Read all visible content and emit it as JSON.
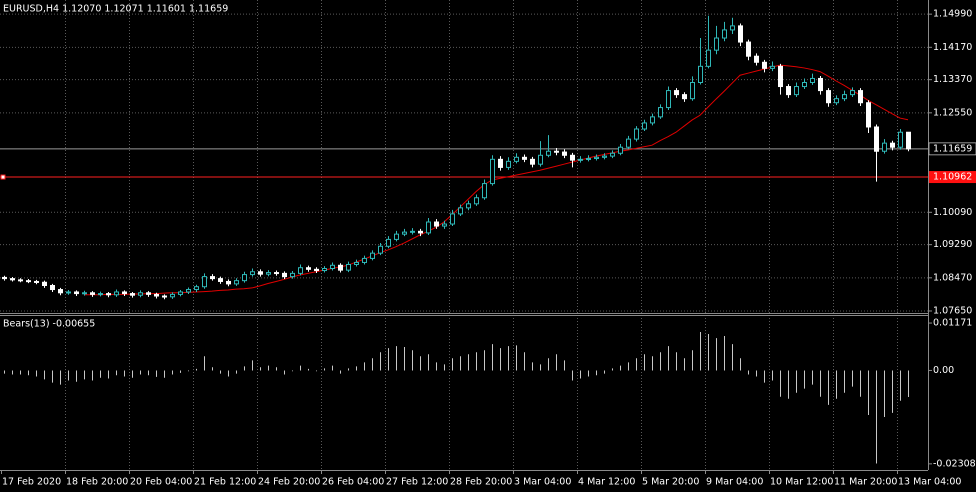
{
  "chart_data": [
    {
      "type": "candlestick",
      "title": "EURUSD,H4  1.12070 1.12071 1.11601 1.11659",
      "up_color": "#2fb8b8",
      "down_color": "#ffffff",
      "ma_color": "#e00000",
      "grid": true,
      "ylim": [
        1.076,
        1.1534
      ],
      "yticks": [
        {
          "value": 1.1499,
          "label": "1.14990"
        },
        {
          "value": 1.1417,
          "label": "1.14170"
        },
        {
          "value": 1.1337,
          "label": "1.13370"
        },
        {
          "value": 1.1255,
          "label": "1.12550"
        },
        {
          "value": 1.1009,
          "label": "1.10090"
        },
        {
          "value": 1.0929,
          "label": "1.09290"
        },
        {
          "value": 1.0847,
          "label": "1.08470"
        },
        {
          "value": 1.0765,
          "label": "1.07650"
        }
      ],
      "current_price": 1.11659,
      "level": 1.10962,
      "x_labels": [
        "17 Feb 2020",
        "18 Feb 20:00",
        "20 Feb 04:00",
        "21 Feb 12:00",
        "24 Feb 20:00",
        "26 Feb 04:00",
        "27 Feb 12:00",
        "28 Feb 20:00",
        "3 Mar 04:00",
        "4 Mar 12:00",
        "5 Mar 20:00",
        "9 Mar 04:00",
        "10 Mar 12:00",
        "11 Mar 20:00",
        "13 Mar 04:00"
      ],
      "ohlc": [
        [
          1.0848,
          1.0852,
          1.084,
          1.0845
        ],
        [
          1.0845,
          1.0849,
          1.0838,
          1.0842
        ],
        [
          1.0842,
          1.0846,
          1.0836,
          1.084
        ],
        [
          1.084,
          1.0844,
          1.0834,
          1.0838
        ],
        [
          1.0838,
          1.0842,
          1.0831,
          1.0836
        ],
        [
          1.0836,
          1.084,
          1.0822,
          1.0828
        ],
        [
          1.0828,
          1.0832,
          1.0812,
          1.0818
        ],
        [
          1.0818,
          1.0822,
          1.0804,
          1.081
        ],
        [
          1.081,
          1.0817,
          1.0805,
          1.0812
        ],
        [
          1.0812,
          1.0816,
          1.0802,
          1.0808
        ],
        [
          1.0808,
          1.0815,
          1.0803,
          1.081
        ],
        [
          1.081,
          1.0814,
          1.08,
          1.0806
        ],
        [
          1.0806,
          1.0813,
          1.0801,
          1.0808
        ],
        [
          1.0808,
          1.0812,
          1.0799,
          1.0805
        ],
        [
          1.0805,
          1.0818,
          1.08,
          1.0812
        ],
        [
          1.0812,
          1.0816,
          1.0802,
          1.0808
        ],
        [
          1.0808,
          1.0812,
          1.0798,
          1.0804
        ],
        [
          1.0804,
          1.0816,
          1.0799,
          1.081
        ],
        [
          1.081,
          1.0814,
          1.08,
          1.0806
        ],
        [
          1.0806,
          1.081,
          1.0796,
          1.0802
        ],
        [
          1.0802,
          1.0806,
          1.0794,
          1.08
        ],
        [
          1.08,
          1.0811,
          1.0795,
          1.0806
        ],
        [
          1.0806,
          1.0817,
          1.0801,
          1.0812
        ],
        [
          1.0812,
          1.0823,
          1.0807,
          1.0818
        ],
        [
          1.0818,
          1.083,
          1.0812,
          1.0825
        ],
        [
          1.0825,
          1.0858,
          1.082,
          1.085
        ],
        [
          1.085,
          1.0856,
          1.084,
          1.0845
        ],
        [
          1.0845,
          1.085,
          1.0832,
          1.0838
        ],
        [
          1.0838,
          1.0843,
          1.0826,
          1.0832
        ],
        [
          1.0832,
          1.0846,
          1.0827,
          1.084
        ],
        [
          1.084,
          1.0862,
          1.0835,
          1.0855
        ],
        [
          1.0855,
          1.087,
          1.085,
          1.0862
        ],
        [
          1.0862,
          1.0868,
          1.085,
          1.0856
        ],
        [
          1.0856,
          1.0866,
          1.0851,
          1.086
        ],
        [
          1.086,
          1.0865,
          1.0852,
          1.0858
        ],
        [
          1.0858,
          1.0863,
          1.0844,
          1.085
        ],
        [
          1.085,
          1.0864,
          1.0845,
          1.0858
        ],
        [
          1.0858,
          1.088,
          1.0853,
          1.0872
        ],
        [
          1.0872,
          1.0877,
          1.0862,
          1.0868
        ],
        [
          1.0868,
          1.0873,
          1.0859,
          1.0865
        ],
        [
          1.0865,
          1.0876,
          1.086,
          1.087
        ],
        [
          1.087,
          1.0885,
          1.0865,
          1.0878
        ],
        [
          1.0878,
          1.0883,
          1.086,
          1.0866
        ],
        [
          1.0866,
          1.0887,
          1.0861,
          1.088
        ],
        [
          1.088,
          1.0892,
          1.0875,
          1.0885
        ],
        [
          1.0885,
          1.0902,
          1.088,
          1.0895
        ],
        [
          1.0895,
          1.0915,
          1.089,
          1.0908
        ],
        [
          1.0908,
          1.0933,
          1.0903,
          1.0925
        ],
        [
          1.0925,
          1.095,
          1.092,
          1.0942
        ],
        [
          1.0942,
          1.0963,
          1.0937,
          1.0955
        ],
        [
          1.0955,
          1.0968,
          1.095,
          1.096
        ],
        [
          1.096,
          1.097,
          1.0954,
          1.0962
        ],
        [
          1.0962,
          1.0968,
          1.095,
          1.0958
        ],
        [
          1.0958,
          1.0995,
          1.0953,
          1.0985
        ],
        [
          1.0985,
          1.0992,
          1.0968,
          1.0975
        ],
        [
          1.0975,
          1.0988,
          1.0968,
          1.098
        ],
        [
          1.098,
          1.1015,
          1.0975,
          1.1005
        ],
        [
          1.1005,
          1.1028,
          1.1,
          1.102
        ],
        [
          1.102,
          1.1038,
          1.1014,
          1.103
        ],
        [
          1.103,
          1.1053,
          1.1025,
          1.1045
        ],
        [
          1.1045,
          1.109,
          1.104,
          1.108
        ],
        [
          1.108,
          1.115,
          1.1075,
          1.114
        ],
        [
          1.114,
          1.1148,
          1.1112,
          1.112
        ],
        [
          1.112,
          1.1145,
          1.1114,
          1.1135
        ],
        [
          1.1135,
          1.1155,
          1.113,
          1.1145
        ],
        [
          1.1145,
          1.1152,
          1.1133,
          1.114
        ],
        [
          1.114,
          1.1146,
          1.112,
          1.1128
        ],
        [
          1.1128,
          1.1185,
          1.1122,
          1.115
        ],
        [
          1.115,
          1.12,
          1.1145,
          1.116
        ],
        [
          1.116,
          1.1168,
          1.115,
          1.1158
        ],
        [
          1.1158,
          1.1165,
          1.1143,
          1.115
        ],
        [
          1.115,
          1.1156,
          1.112,
          1.1138
        ],
        [
          1.1138,
          1.1148,
          1.1132,
          1.114
        ],
        [
          1.114,
          1.115,
          1.1135,
          1.1142
        ],
        [
          1.1142,
          1.1152,
          1.1137,
          1.1145
        ],
        [
          1.1145,
          1.1155,
          1.114,
          1.1148
        ],
        [
          1.1148,
          1.1162,
          1.1143,
          1.1155
        ],
        [
          1.1155,
          1.1178,
          1.115,
          1.117
        ],
        [
          1.117,
          1.1198,
          1.1165,
          1.119
        ],
        [
          1.119,
          1.1222,
          1.1184,
          1.1215
        ],
        [
          1.1215,
          1.1238,
          1.121,
          1.123
        ],
        [
          1.123,
          1.1253,
          1.1224,
          1.1245
        ],
        [
          1.1245,
          1.1276,
          1.124,
          1.1268
        ],
        [
          1.1268,
          1.132,
          1.1262,
          1.131
        ],
        [
          1.131,
          1.1316,
          1.1292,
          1.13
        ],
        [
          1.13,
          1.1306,
          1.1282,
          1.129
        ],
        [
          1.129,
          1.1345,
          1.1285,
          1.133
        ],
        [
          1.133,
          1.144,
          1.1325,
          1.137
        ],
        [
          1.137,
          1.1495,
          1.1365,
          1.141
        ],
        [
          1.141,
          1.147,
          1.14,
          1.144
        ],
        [
          1.144,
          1.148,
          1.1432,
          1.146
        ],
        [
          1.146,
          1.149,
          1.145,
          1.147
        ],
        [
          1.147,
          1.1476,
          1.142,
          1.143
        ],
        [
          1.143,
          1.1436,
          1.1385,
          1.1395
        ],
        [
          1.1395,
          1.1402,
          1.1372,
          1.138
        ],
        [
          1.138,
          1.1386,
          1.1355,
          1.1365
        ],
        [
          1.1365,
          1.1382,
          1.1358,
          1.137
        ],
        [
          1.137,
          1.1376,
          1.13,
          1.132
        ],
        [
          1.132,
          1.1326,
          1.1292,
          1.13
        ],
        [
          1.13,
          1.133,
          1.1294,
          1.132
        ],
        [
          1.132,
          1.134,
          1.1314,
          1.133
        ],
        [
          1.133,
          1.1352,
          1.1324,
          1.134
        ],
        [
          1.134,
          1.1346,
          1.13,
          1.131
        ],
        [
          1.131,
          1.1316,
          1.127,
          1.128
        ],
        [
          1.128,
          1.1298,
          1.1274,
          1.129
        ],
        [
          1.129,
          1.131,
          1.1284,
          1.13
        ],
        [
          1.13,
          1.1318,
          1.1294,
          1.131
        ],
        [
          1.131,
          1.1316,
          1.1272,
          1.128
        ],
        [
          1.128,
          1.1286,
          1.1205,
          1.122
        ],
        [
          1.122,
          1.1226,
          1.1085,
          1.116
        ],
        [
          1.116,
          1.119,
          1.1154,
          1.118
        ],
        [
          1.118,
          1.1186,
          1.1162,
          1.117
        ],
        [
          1.117,
          1.1215,
          1.1164,
          1.1207
        ],
        [
          1.1207,
          1.12071,
          1.11601,
          1.11659
        ]
      ],
      "ma": [
        null,
        null,
        null,
        null,
        null,
        null,
        null,
        null,
        null,
        null,
        1.0805,
        1.0805,
        1.0805,
        1.0806,
        1.0806,
        1.0806,
        1.0807,
        1.0807,
        1.0808,
        1.0808,
        1.0809,
        1.081,
        1.081,
        1.0811,
        1.0812,
        1.0813,
        1.0814,
        1.0816,
        1.0817,
        1.0819,
        1.082,
        1.0822,
        1.0827,
        1.0833,
        1.0838,
        1.0843,
        1.0849,
        1.0854,
        1.0858,
        1.0862,
        1.0866,
        1.087,
        1.0874,
        1.0878,
        1.0886,
        1.0893,
        1.0901,
        1.0909,
        1.0916,
        1.0924,
        1.0933,
        1.0943,
        1.0953,
        1.0962,
        1.0972,
        1.0985,
        1.1003,
        1.1022,
        1.1041,
        1.106,
        1.1077,
        1.1089,
        1.1093,
        1.1097,
        1.1101,
        1.1105,
        1.1109,
        1.1113,
        1.1118,
        1.1123,
        1.1128,
        1.1133,
        1.1138,
        1.1143,
        1.1148,
        1.1152,
        1.1156,
        1.116,
        1.1163,
        1.1167,
        1.1171,
        1.1175,
        1.1186,
        1.1196,
        1.1207,
        1.1222,
        1.1237,
        1.1249,
        1.1269,
        1.1289,
        1.1308,
        1.1328,
        1.1348,
        1.1353,
        1.1358,
        1.1363,
        1.1368,
        1.1373,
        1.1371,
        1.1369,
        1.1366,
        1.1362,
        1.1357,
        1.1346,
        1.1334,
        1.1323,
        1.1311,
        1.1299,
        1.1286,
        1.1275,
        1.1264,
        1.1253,
        1.1242,
        1.1238
      ]
    },
    {
      "type": "bar",
      "title": "Bears(13) -0.00655",
      "color": "#c8c8c8",
      "ylim": [
        -0.0246,
        0.0137
      ],
      "yticks": [
        0.01171,
        {
          "value": 0,
          "label": "0.00"
        },
        -0.02308
      ],
      "values": [
        -0.0008,
        -0.001,
        -0.001,
        -0.0012,
        -0.0015,
        -0.0022,
        -0.003,
        -0.0035,
        -0.0025,
        -0.0028,
        -0.0022,
        -0.0025,
        -0.0018,
        -0.002,
        -0.0012,
        -0.0015,
        -0.0018,
        -0.001,
        -0.0012,
        -0.0016,
        -0.0018,
        -0.001,
        -0.0006,
        -0.0002,
        0.0004,
        0.0035,
        0.0008,
        -0.0008,
        -0.0015,
        -0.0008,
        0.001,
        0.0025,
        0.0008,
        0.0012,
        0.0008,
        -0.001,
        -0.0002,
        0.0012,
        0.0004,
        -0.0002,
        0.0005,
        0.0012,
        -0.0008,
        0.0005,
        0.001,
        0.002,
        0.003,
        0.0045,
        0.0055,
        0.006,
        0.0058,
        0.005,
        0.0035,
        0.004,
        0.002,
        0.0015,
        0.003,
        0.0035,
        0.004,
        0.0045,
        0.005,
        0.0065,
        0.0055,
        0.006,
        0.0062,
        0.0045,
        0.002,
        0.0015,
        0.003,
        0.004,
        0.0025,
        -0.0025,
        -0.002,
        -0.0015,
        -0.0012,
        -0.0008,
        0.0005,
        0.0012,
        0.002,
        0.003,
        0.004,
        0.0035,
        0.0045,
        0.006,
        0.0045,
        0.003,
        0.005,
        0.0095,
        0.009,
        0.008,
        0.0085,
        0.0065,
        0.003,
        -0.001,
        -0.0015,
        -0.003,
        -0.0025,
        -0.0065,
        -0.007,
        -0.0055,
        -0.0045,
        -0.0035,
        -0.0065,
        -0.0085,
        -0.007,
        -0.0055,
        -0.004,
        -0.0065,
        -0.011,
        -0.023,
        -0.0115,
        -0.0105,
        -0.0075,
        -0.00655
      ]
    }
  ]
}
